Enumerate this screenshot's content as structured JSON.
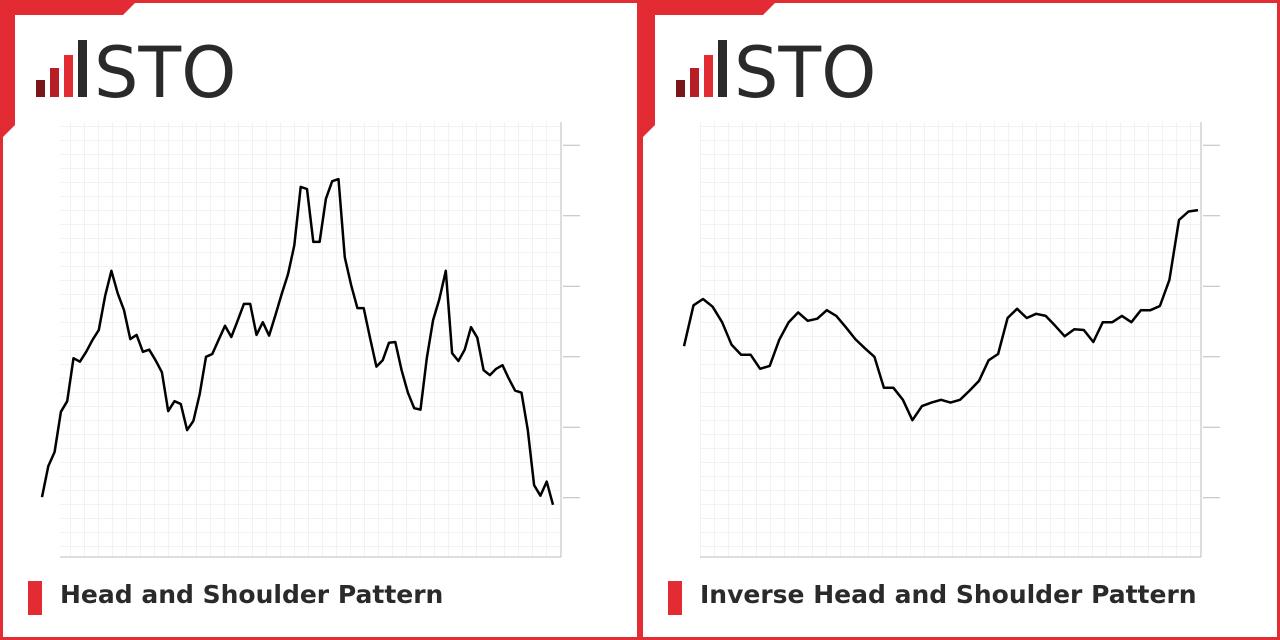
{
  "chart_data": [
    {
      "type": "line",
      "logo": "STO",
      "title": "Head and Shoulder Pattern",
      "color": "#000000",
      "ylim": [
        1.6,
        63.3
      ],
      "yticks": [
        10,
        20,
        30,
        40,
        50,
        60
      ],
      "values": [
        10.1,
        14.5,
        16.5,
        22.2,
        23.7,
        29.8,
        29.3,
        30.7,
        32.4,
        33.8,
        38.6,
        42.2,
        39.0,
        36.6,
        32.5,
        33.1,
        30.7,
        31.0,
        29.5,
        27.8,
        22.3,
        23.7,
        23.3,
        19.6,
        20.9,
        24.7,
        30.0,
        30.4,
        32.4,
        34.4,
        32.8,
        35.1,
        37.5,
        37.5,
        33.1,
        34.9,
        33.0,
        35.9,
        38.9,
        41.7,
        45.8,
        54.1,
        53.8,
        46.3,
        46.3,
        52.4,
        54.9,
        55.2,
        44.1,
        40.2,
        36.9,
        36.9,
        32.7,
        28.6,
        29.5,
        32.0,
        32.1,
        28.1,
        24.9,
        22.7,
        22.5,
        29.8,
        35.2,
        38.2,
        42.2,
        30.5,
        29.4,
        31.0,
        34.2,
        32.7,
        28.1,
        27.4,
        28.3,
        28.8,
        26.9,
        25.2,
        24.9,
        19.6,
        11.8,
        10.3,
        12.3,
        9.0
      ]
    },
    {
      "type": "line",
      "logo": "STO",
      "title": "Inverse Head and Shoulder Pattern",
      "color": "#000000",
      "ylim": [
        1.6,
        63.3
      ],
      "yticks": [
        10,
        20,
        30,
        40,
        50,
        60
      ],
      "values": [
        31.5,
        37.3,
        38.2,
        37.1,
        34.9,
        31.7,
        30.3,
        30.3,
        28.3,
        28.7,
        32.4,
        34.9,
        36.3,
        35.1,
        35.4,
        36.6,
        35.8,
        34.2,
        32.5,
        31.2,
        30.0,
        25.6,
        25.6,
        23.9,
        21.0,
        23.0,
        23.5,
        23.9,
        23.5,
        23.9,
        25.2,
        26.6,
        29.5,
        30.4,
        35.5,
        36.8,
        35.5,
        36.1,
        35.8,
        34.4,
        32.9,
        33.9,
        33.8,
        32.1,
        34.9,
        34.9,
        35.8,
        34.9,
        36.6,
        36.6,
        37.2,
        40.9,
        49.4,
        50.6,
        50.8
      ]
    }
  ]
}
